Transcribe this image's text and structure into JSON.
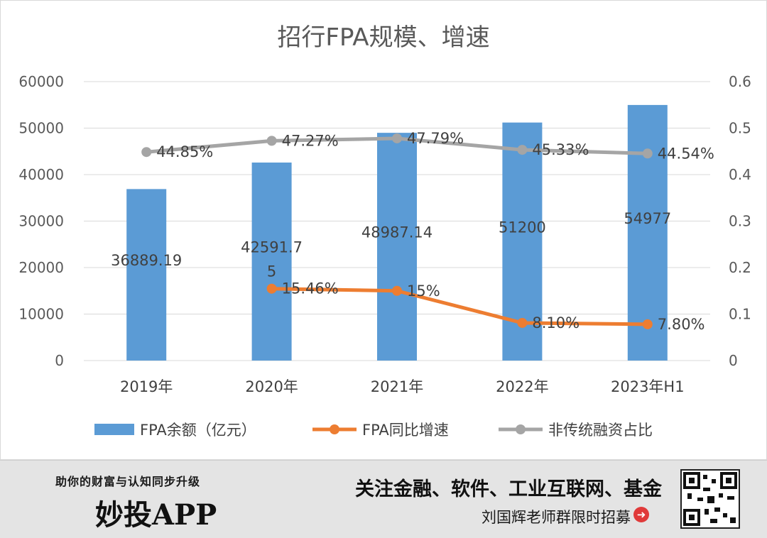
{
  "chart_data": {
    "type": "bar+line",
    "title": "招行FPA规模、增速",
    "categories": [
      "2019年",
      "2020年",
      "2021年",
      "2022年",
      "2023年H1"
    ],
    "left_axis": {
      "min": 0,
      "max": 60000,
      "step": 10000,
      "ticks": [
        "0",
        "10000",
        "20000",
        "30000",
        "40000",
        "50000",
        "60000"
      ]
    },
    "right_axis": {
      "min": 0,
      "max": 0.6,
      "step": 0.1,
      "ticks": [
        "0",
        "0.1",
        "0.2",
        "0.3",
        "0.4",
        "0.5",
        "0.6"
      ]
    },
    "grid": true,
    "legend_position": "bottom",
    "series": [
      {
        "name": "FPA余额（亿元）",
        "kind": "bar",
        "axis": "left",
        "color": "#5b9bd5",
        "values": [
          36889.19,
          42591.75,
          48987.14,
          51200,
          54977
        ],
        "labels": [
          [
            "36889.19"
          ],
          [
            "42591.7",
            "5"
          ],
          [
            "48987.14"
          ],
          [
            "51200"
          ],
          [
            "54977"
          ]
        ]
      },
      {
        "name": "FPA同比增速",
        "kind": "line",
        "axis": "right",
        "color": "#ed7d31",
        "values": [
          null,
          0.1546,
          0.15,
          0.081,
          0.078
        ],
        "labels": [
          "",
          "15.46%",
          "15%",
          "8.10%",
          "7.80%"
        ]
      },
      {
        "name": "非传统融资占比",
        "kind": "line",
        "axis": "right",
        "color": "#a5a5a5",
        "values": [
          0.4485,
          0.4727,
          0.4779,
          0.4533,
          0.4454
        ],
        "labels": [
          "44.85%",
          "47.27%",
          "47.79%",
          "45.33%",
          "44.54%"
        ]
      }
    ]
  },
  "banner": {
    "slogan": "助你的财富与认知同步升级",
    "app_name": "妙投APP",
    "headline": "关注金融、软件、工业互联网、基金",
    "subline": "刘国辉老师群限时招募",
    "arrow_icon": "arrow-right-circle-icon",
    "qr_icon": "qr-code-icon"
  }
}
